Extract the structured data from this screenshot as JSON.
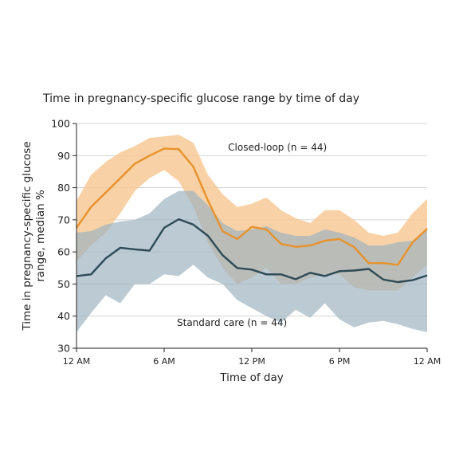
{
  "chart_data": {
    "type": "line",
    "title": "Time in pregnancy-specific glucose range by time of day",
    "xlabel": "Time of day",
    "ylabel": "Time in pregnancy-specific glucose range, median %",
    "ylabel_lines": [
      "Time in pregnancy-specific glucose",
      "range, median %"
    ],
    "xlim": [
      0,
      24
    ],
    "ylim": [
      30,
      100
    ],
    "yticks": [
      30,
      40,
      50,
      60,
      70,
      80,
      90,
      100
    ],
    "xticks": [
      {
        "x": 0,
        "label": "12 AM"
      },
      {
        "x": 6,
        "label": "6 AM"
      },
      {
        "x": 12,
        "label": "12 PM"
      },
      {
        "x": 18,
        "label": "6 PM"
      },
      {
        "x": 24,
        "label": "12 AM"
      }
    ],
    "grid": "horizontal",
    "series": [
      {
        "name": "Closed-loop (n = 44)",
        "color": "#e8922a",
        "band_color": "#f7c996",
        "label_pos": [
          9.5,
          91.5
        ],
        "x": [
          0,
          1,
          2,
          3,
          4,
          5,
          6,
          7,
          8,
          9,
          10,
          11,
          12,
          13,
          14,
          15,
          16,
          17,
          18,
          19,
          20,
          21,
          22,
          23,
          24
        ],
        "median": [
          67.5,
          74,
          78.5,
          83,
          87.5,
          90,
          92.2,
          92,
          86.5,
          76,
          66.5,
          64,
          67.8,
          67,
          62.5,
          61.6,
          62,
          63.5,
          64,
          61.5,
          56.5,
          56.5,
          56,
          63,
          67.2
        ],
        "upper": [
          76,
          84,
          88,
          91,
          93,
          95.5,
          96,
          96.5,
          94,
          84,
          78,
          74,
          75,
          77,
          73,
          70.5,
          69,
          73,
          73,
          70,
          66,
          65,
          66,
          72,
          76.5
        ],
        "lower": [
          57,
          62,
          66,
          72,
          79,
          83,
          85.5,
          82,
          74,
          63,
          55,
          50,
          52,
          55,
          50,
          50,
          52,
          53,
          53,
          49,
          48,
          48,
          48,
          52,
          56
        ]
      },
      {
        "name": "Standard care (n = 44)",
        "color": "#2d4a55",
        "band_color": "#9fb3c1",
        "label_pos": [
          6,
          37
        ],
        "x": [
          0,
          1,
          2,
          3,
          4,
          5,
          6,
          7,
          8,
          9,
          10,
          11,
          12,
          13,
          14,
          15,
          16,
          17,
          18,
          19,
          20,
          21,
          22,
          23,
          24
        ],
        "median": [
          52.5,
          53,
          58,
          61.3,
          60.8,
          60.4,
          67.5,
          70.2,
          68.5,
          65,
          59,
          55,
          54.5,
          53,
          53,
          51.5,
          53.5,
          52.5,
          54,
          54.2,
          54.7,
          51.4,
          50.6,
          51.2,
          52.7
        ],
        "upper": [
          66,
          66.5,
          68.5,
          69.5,
          70,
          72,
          76.5,
          79,
          79,
          74.5,
          69,
          66.5,
          67,
          68,
          66,
          65,
          65,
          67,
          66,
          64.5,
          62,
          62,
          63,
          63.5,
          67
        ],
        "lower": [
          35,
          41,
          46.5,
          44,
          50,
          50,
          53,
          52.5,
          56,
          52,
          50,
          45,
          42.5,
          40,
          38,
          42,
          39.5,
          44,
          39,
          36.5,
          38,
          38.5,
          37.5,
          36,
          35
        ]
      }
    ]
  }
}
